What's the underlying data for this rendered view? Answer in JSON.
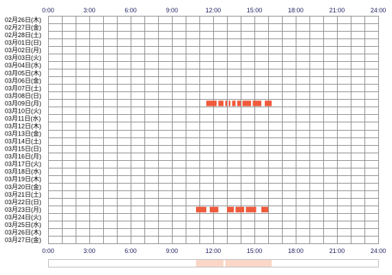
{
  "colors": {
    "grid": "#8c8c8c",
    "frame": "#8c8c8c",
    "bar": "#f05a3c",
    "summary_fill": "#fbd7c8",
    "summary_frame": "#bdbdbd",
    "tick_text": "#1a1a5e"
  },
  "chart_data": {
    "type": "timeline",
    "x_ticks": [
      "0:00",
      "3:00",
      "6:00",
      "9:00",
      "12:00",
      "15:00",
      "18:00",
      "21:00",
      "24:00"
    ],
    "xlim": [
      0,
      24
    ],
    "grid": true,
    "rows": [
      "02月26日(木)",
      "02月27日(金)",
      "02月28日(土)",
      "03月01日(日)",
      "03月02日(月)",
      "03月03日(火)",
      "03月04日(水)",
      "03月05日(木)",
      "03月06日(金)",
      "03月07日(土)",
      "03月08日(日)",
      "03月09日(月)",
      "03月10日(火)",
      "03月11日(水)",
      "03月12日(木)",
      "03月13日(金)",
      "03月14日(土)",
      "03月15日(日)",
      "03月16日(月)",
      "03月17日(火)",
      "03月18日(水)",
      "03月19日(木)",
      "03月20日(金)",
      "03月21日(土)",
      "03月22日(日)",
      "03月23日(月)",
      "03月24日(火)",
      "03月25日(水)",
      "03月26日(木)",
      "03月27日(金)"
    ],
    "segments": [
      {
        "row": 11,
        "start": 11.5,
        "end": 12.25
      },
      {
        "row": 11,
        "start": 12.375,
        "end": 12.75
      },
      {
        "row": 11,
        "start": 12.875,
        "end": 13.0
      },
      {
        "row": 11,
        "start": 13.125,
        "end": 13.25
      },
      {
        "row": 11,
        "start": 13.375,
        "end": 13.625
      },
      {
        "row": 11,
        "start": 13.75,
        "end": 14.0
      },
      {
        "row": 11,
        "start": 14.125,
        "end": 14.75
      },
      {
        "row": 11,
        "start": 14.875,
        "end": 15.5
      },
      {
        "row": 11,
        "start": 15.75,
        "end": 16.25
      },
      {
        "row": 25,
        "start": 10.75,
        "end": 11.5
      },
      {
        "row": 25,
        "start": 11.75,
        "end": 12.375
      },
      {
        "row": 25,
        "start": 13.0,
        "end": 13.5
      },
      {
        "row": 25,
        "start": 13.625,
        "end": 14.25
      },
      {
        "row": 25,
        "start": 14.375,
        "end": 15.125
      },
      {
        "row": 25,
        "start": 15.5,
        "end": 16.0
      }
    ]
  }
}
